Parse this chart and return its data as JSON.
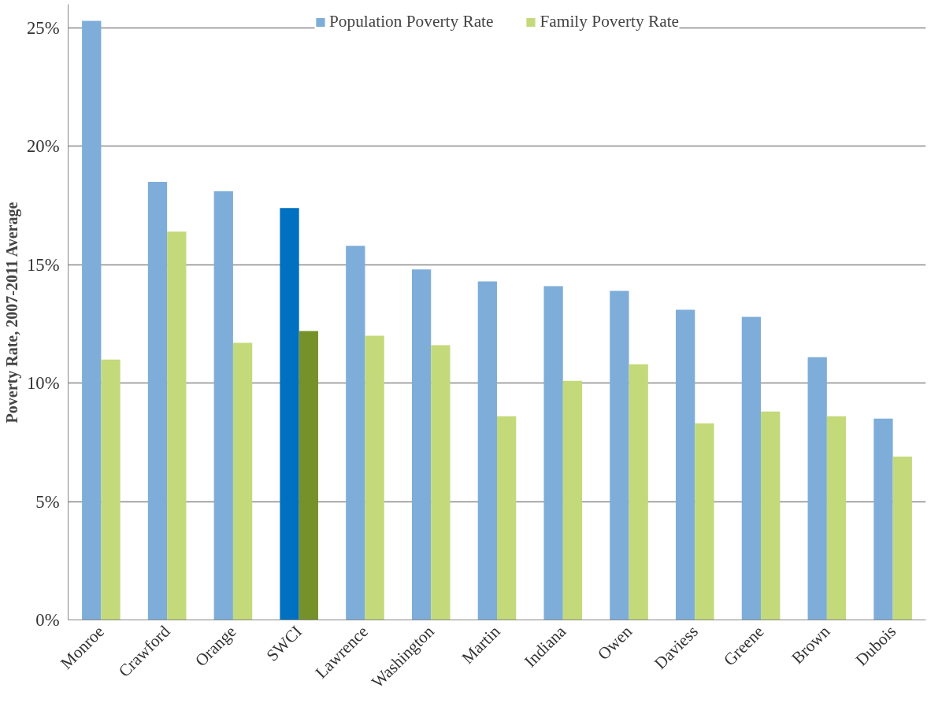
{
  "chart_data": {
    "type": "bar",
    "ylabel": "Poverty Rate, 2007-2011 Average",
    "categories": [
      "Monroe",
      "Crawford",
      "Orange",
      "SWCI",
      "Lawrence",
      "Washington",
      "Martin",
      "Indiana",
      "Owen",
      "Daviess",
      "Greene",
      "Brown",
      "Dubois"
    ],
    "series": [
      {
        "name": "Population Poverty Rate",
        "color": "#7eadd9",
        "colors": [
          "#7eadd9",
          "#7eadd9",
          "#7eadd9",
          "#0070c0",
          "#7eadd9",
          "#7eadd9",
          "#7eadd9",
          "#7eadd9",
          "#7eadd9",
          "#7eadd9",
          "#7eadd9",
          "#7eadd9",
          "#7eadd9"
        ],
        "values": [
          25.3,
          18.5,
          18.1,
          17.4,
          15.8,
          14.8,
          14.3,
          14.1,
          13.9,
          13.1,
          12.8,
          11.1,
          8.5
        ]
      },
      {
        "name": "Family Poverty Rate",
        "color": "#c4d97a",
        "colors": [
          "#c4d97a",
          "#c4d97a",
          "#c4d97a",
          "#77912a",
          "#c4d97a",
          "#c4d97a",
          "#c4d97a",
          "#c4d97a",
          "#c4d97a",
          "#c4d97a",
          "#c4d97a",
          "#c4d97a",
          "#c4d97a"
        ],
        "values": [
          11.0,
          16.4,
          11.7,
          12.2,
          12.0,
          11.6,
          8.6,
          10.1,
          10.8,
          8.3,
          8.8,
          8.6,
          6.9
        ]
      }
    ],
    "ylim": [
      0,
      26
    ],
    "yticks": [
      {
        "value": 0,
        "label": "0%"
      },
      {
        "value": 5,
        "label": "5%"
      },
      {
        "value": 10,
        "label": "10%"
      },
      {
        "value": 15,
        "label": "15%"
      },
      {
        "value": 20,
        "label": "20%"
      },
      {
        "value": 25,
        "label": "25%"
      }
    ],
    "grid": "y",
    "legend": "top"
  }
}
